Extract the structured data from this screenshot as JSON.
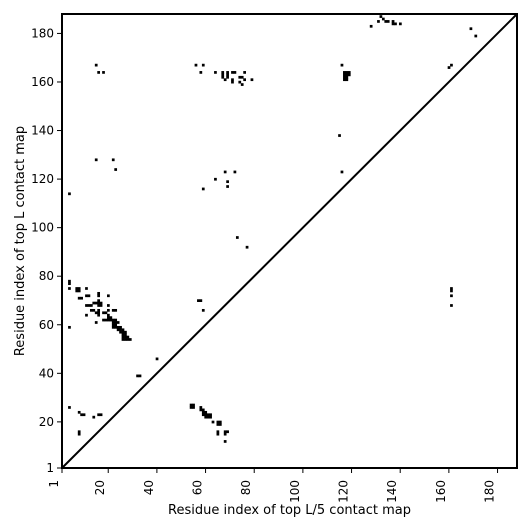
{
  "chart_data": {
    "type": "heatmap",
    "xlabel": "Residue index of top L/5 contact map",
    "ylabel": "Residue index of top L contact map",
    "xlim": [
      1,
      188
    ],
    "ylim": [
      1,
      188
    ],
    "x_ticks": [
      1,
      20,
      40,
      60,
      80,
      100,
      120,
      140,
      160,
      180
    ],
    "y_ticks": [
      1,
      20,
      40,
      60,
      80,
      100,
      120,
      140,
      160,
      180
    ],
    "diagonal": true,
    "upper_left_contacts": [
      [
        4,
        114
      ],
      [
        15,
        128
      ],
      [
        15,
        167
      ],
      [
        16,
        164
      ],
      [
        18,
        164
      ],
      [
        22,
        128
      ],
      [
        23,
        124
      ],
      [
        56,
        167
      ],
      [
        58,
        164
      ],
      [
        59,
        167
      ],
      [
        59,
        116
      ],
      [
        64,
        164
      ],
      [
        64,
        120
      ],
      [
        67,
        164
      ],
      [
        67,
        163
      ],
      [
        67,
        162
      ],
      [
        68,
        161
      ],
      [
        69,
        164
      ],
      [
        69,
        163
      ],
      [
        69,
        162
      ],
      [
        68,
        123
      ],
      [
        69,
        119
      ],
      [
        69,
        117
      ],
      [
        71,
        164
      ],
      [
        71,
        161
      ],
      [
        71,
        160
      ],
      [
        72,
        164
      ],
      [
        72,
        123
      ],
      [
        73,
        96
      ],
      [
        74,
        162
      ],
      [
        74,
        160
      ],
      [
        75,
        159
      ],
      [
        75,
        162
      ],
      [
        76,
        164
      ],
      [
        76,
        161
      ],
      [
        77,
        92
      ],
      [
        79,
        161
      ],
      [
        115,
        138
      ],
      [
        116,
        123
      ],
      [
        116,
        167
      ],
      [
        117,
        164
      ],
      [
        117,
        163
      ],
      [
        117,
        162
      ],
      [
        117,
        161
      ],
      [
        118,
        164
      ],
      [
        118,
        163
      ],
      [
        118,
        162
      ],
      [
        118,
        161
      ],
      [
        119,
        164
      ],
      [
        119,
        163
      ],
      [
        128,
        183
      ],
      [
        131,
        185
      ],
      [
        132,
        187
      ],
      [
        133,
        186
      ],
      [
        134,
        185
      ],
      [
        135,
        185
      ],
      [
        137,
        185
      ],
      [
        137,
        184
      ],
      [
        138,
        184
      ],
      [
        140,
        184
      ],
      [
        160,
        166
      ],
      [
        161,
        167
      ],
      [
        169,
        182
      ],
      [
        171,
        179
      ]
    ],
    "lower_right_contacts": [
      [
        4,
        78
      ],
      [
        4,
        77
      ],
      [
        4,
        75
      ],
      [
        4,
        59
      ],
      [
        4,
        26
      ],
      [
        7,
        75
      ],
      [
        7,
        74
      ],
      [
        8,
        75
      ],
      [
        8,
        74
      ],
      [
        8,
        71
      ],
      [
        9,
        71
      ],
      [
        8,
        24
      ],
      [
        8,
        16
      ],
      [
        8,
        15
      ],
      [
        9,
        23
      ],
      [
        10,
        23
      ],
      [
        11,
        75
      ],
      [
        11,
        72
      ],
      [
        12,
        72
      ],
      [
        11,
        68
      ],
      [
        12,
        68
      ],
      [
        11,
        64
      ],
      [
        13,
        68
      ],
      [
        13,
        66
      ],
      [
        14,
        69
      ],
      [
        14,
        66
      ],
      [
        15,
        69
      ],
      [
        15,
        65
      ],
      [
        15,
        61
      ],
      [
        16,
        73
      ],
      [
        16,
        72
      ],
      [
        16,
        70
      ],
      [
        16,
        69
      ],
      [
        16,
        68
      ],
      [
        16,
        66
      ],
      [
        16,
        65
      ],
      [
        16,
        64
      ],
      [
        17,
        69
      ],
      [
        17,
        68
      ],
      [
        16,
        23
      ],
      [
        17,
        23
      ],
      [
        14,
        22
      ],
      [
        18,
        65
      ],
      [
        19,
        65
      ],
      [
        18,
        62
      ],
      [
        19,
        62
      ],
      [
        20,
        72
      ],
      [
        20,
        68
      ],
      [
        20,
        66
      ],
      [
        20,
        64
      ],
      [
        20,
        63
      ],
      [
        20,
        62
      ],
      [
        21,
        63
      ],
      [
        21,
        62
      ],
      [
        22,
        66
      ],
      [
        23,
        66
      ],
      [
        22,
        62
      ],
      [
        23,
        62
      ],
      [
        22,
        61
      ],
      [
        23,
        61
      ],
      [
        22,
        60
      ],
      [
        23,
        60
      ],
      [
        22,
        59
      ],
      [
        23,
        59
      ],
      [
        24,
        61
      ],
      [
        24,
        59
      ],
      [
        24,
        58
      ],
      [
        25,
        59
      ],
      [
        25,
        58
      ],
      [
        25,
        57
      ],
      [
        26,
        58
      ],
      [
        26,
        57
      ],
      [
        26,
        56
      ],
      [
        26,
        55
      ],
      [
        26,
        54
      ],
      [
        27,
        57
      ],
      [
        27,
        56
      ],
      [
        27,
        55
      ],
      [
        27,
        54
      ],
      [
        28,
        55
      ],
      [
        28,
        54
      ],
      [
        29,
        54
      ],
      [
        32,
        39
      ],
      [
        33,
        39
      ],
      [
        40,
        46
      ],
      [
        54,
        27
      ],
      [
        54,
        26
      ],
      [
        55,
        27
      ],
      [
        55,
        26
      ],
      [
        57,
        70
      ],
      [
        58,
        70
      ],
      [
        59,
        66
      ],
      [
        58,
        26
      ],
      [
        58,
        25
      ],
      [
        59,
        25
      ],
      [
        59,
        24
      ],
      [
        59,
        23
      ],
      [
        60,
        24
      ],
      [
        60,
        23
      ],
      [
        60,
        22
      ],
      [
        61,
        23
      ],
      [
        61,
        22
      ],
      [
        62,
        23
      ],
      [
        62,
        22
      ],
      [
        63,
        20
      ],
      [
        65,
        20
      ],
      [
        65,
        19
      ],
      [
        66,
        20
      ],
      [
        66,
        19
      ],
      [
        65,
        16
      ],
      [
        65,
        15
      ],
      [
        68,
        16
      ],
      [
        68,
        15
      ],
      [
        69,
        16
      ],
      [
        68,
        12
      ],
      [
        161,
        75
      ],
      [
        161,
        74
      ],
      [
        161,
        72
      ],
      [
        161,
        68
      ]
    ]
  }
}
